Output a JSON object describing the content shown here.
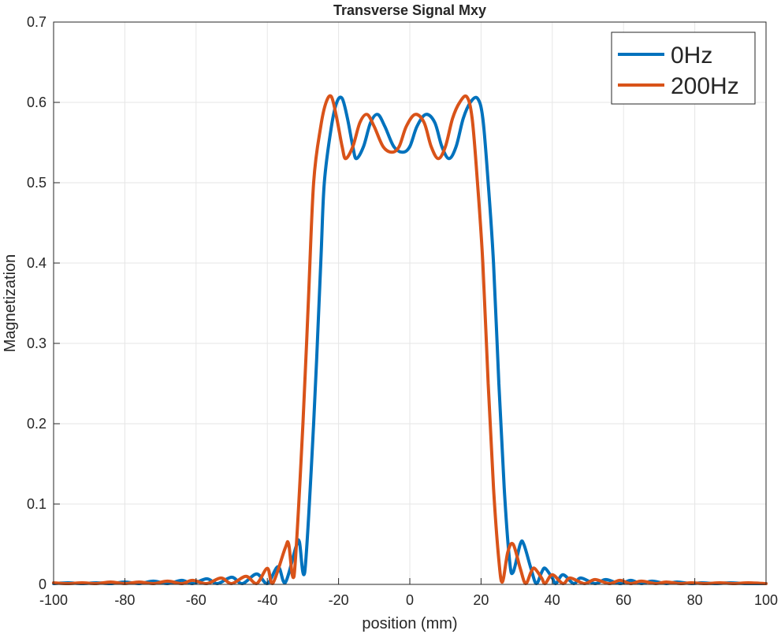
{
  "chart_data": {
    "type": "line",
    "title": "Transverse Signal Mxy",
    "xlabel": "position (mm)",
    "ylabel": "Magnetization",
    "xlim": [
      -100,
      100
    ],
    "ylim": [
      0,
      0.7
    ],
    "xticks": [
      "-100",
      "-80",
      "-60",
      "-40",
      "-20",
      "0",
      "20",
      "40",
      "60",
      "80",
      "100"
    ],
    "yticks": [
      "0",
      "0.1",
      "0.2",
      "0.3",
      "0.4",
      "0.5",
      "0.6",
      "0.7"
    ],
    "grid": true,
    "legend_position": "top-right",
    "series": [
      {
        "name": "0Hz",
        "color": "#0072BD",
        "points": [
          [
            -100,
            0.001
          ],
          [
            -96,
            0.002
          ],
          [
            -92,
            0.001
          ],
          [
            -88,
            0.002
          ],
          [
            -84,
            0.001
          ],
          [
            -80,
            0.003
          ],
          [
            -76,
            0.001
          ],
          [
            -72,
            0.004
          ],
          [
            -68,
            0.001
          ],
          [
            -64,
            0.005
          ],
          [
            -61,
            0.001
          ],
          [
            -57,
            0.007
          ],
          [
            -54,
            0.001
          ],
          [
            -50,
            0.009
          ],
          [
            -47,
            0.001
          ],
          [
            -43,
            0.013
          ],
          [
            -40,
            0.001
          ],
          [
            -37,
            0.022
          ],
          [
            -35,
            0.002
          ],
          [
            -32,
            0.046
          ],
          [
            -31,
            0.053
          ],
          [
            -29.5,
            0.015
          ],
          [
            -27,
            0.2
          ],
          [
            -25,
            0.4
          ],
          [
            -24,
            0.5
          ],
          [
            -22,
            0.57
          ],
          [
            -20.5,
            0.6
          ],
          [
            -19,
            0.605
          ],
          [
            -17.5,
            0.58
          ],
          [
            -16,
            0.545
          ],
          [
            -15,
            0.53
          ],
          [
            -13,
            0.545
          ],
          [
            -11,
            0.575
          ],
          [
            -9,
            0.585
          ],
          [
            -7,
            0.57
          ],
          [
            -4.5,
            0.545
          ],
          [
            -2,
            0.538
          ],
          [
            0,
            0.545
          ],
          [
            2,
            0.57
          ],
          [
            4.5,
            0.585
          ],
          [
            7,
            0.575
          ],
          [
            9,
            0.545
          ],
          [
            11,
            0.53
          ],
          [
            13,
            0.545
          ],
          [
            15,
            0.58
          ],
          [
            17,
            0.6
          ],
          [
            19,
            0.605
          ],
          [
            20.5,
            0.58
          ],
          [
            22,
            0.5
          ],
          [
            23.5,
            0.4
          ],
          [
            25,
            0.25
          ],
          [
            26.5,
            0.12
          ],
          [
            28,
            0.03
          ],
          [
            29,
            0.015
          ],
          [
            31,
            0.05
          ],
          [
            32,
            0.05
          ],
          [
            34,
            0.02
          ],
          [
            35.5,
            0.001
          ],
          [
            37,
            0.015
          ],
          [
            38,
            0.02
          ],
          [
            40,
            0.008
          ],
          [
            41,
            0.001
          ],
          [
            43,
            0.012
          ],
          [
            46,
            0.001
          ],
          [
            48,
            0.008
          ],
          [
            52,
            0.001
          ],
          [
            55,
            0.006
          ],
          [
            59,
            0.001
          ],
          [
            62,
            0.005
          ],
          [
            65,
            0.001
          ],
          [
            68,
            0.004
          ],
          [
            72,
            0.001
          ],
          [
            75,
            0.003
          ],
          [
            79,
            0.001
          ],
          [
            82,
            0.002
          ],
          [
            86,
            0.001
          ],
          [
            90,
            0.002
          ],
          [
            94,
            0.001
          ],
          [
            100,
            0.001
          ]
        ]
      },
      {
        "name": "200Hz",
        "color": "#D95319",
        "points": [
          [
            -100,
            0.002
          ],
          [
            -96,
            0.001
          ],
          [
            -92,
            0.002
          ],
          [
            -88,
            0.001
          ],
          [
            -84,
            0.003
          ],
          [
            -80,
            0.001
          ],
          [
            -76,
            0.003
          ],
          [
            -72,
            0.001
          ],
          [
            -68,
            0.004
          ],
          [
            -64,
            0.001
          ],
          [
            -61,
            0.005
          ],
          [
            -57,
            0.001
          ],
          [
            -53,
            0.008
          ],
          [
            -50,
            0.001
          ],
          [
            -46,
            0.01
          ],
          [
            -43,
            0.001
          ],
          [
            -40,
            0.02
          ],
          [
            -38.5,
            0.001
          ],
          [
            -35,
            0.045
          ],
          [
            -34,
            0.05
          ],
          [
            -32.5,
            0.01
          ],
          [
            -30,
            0.2
          ],
          [
            -28.5,
            0.35
          ],
          [
            -27,
            0.5
          ],
          [
            -25,
            0.57
          ],
          [
            -23.5,
            0.6
          ],
          [
            -22,
            0.607
          ],
          [
            -20.5,
            0.58
          ],
          [
            -19,
            0.545
          ],
          [
            -18,
            0.53
          ],
          [
            -16,
            0.545
          ],
          [
            -14,
            0.575
          ],
          [
            -12,
            0.585
          ],
          [
            -10,
            0.57
          ],
          [
            -7.5,
            0.545
          ],
          [
            -5,
            0.538
          ],
          [
            -3,
            0.545
          ],
          [
            -1,
            0.57
          ],
          [
            1.5,
            0.585
          ],
          [
            4,
            0.575
          ],
          [
            6,
            0.545
          ],
          [
            8,
            0.53
          ],
          [
            10,
            0.545
          ],
          [
            12,
            0.58
          ],
          [
            14,
            0.6
          ],
          [
            16,
            0.607
          ],
          [
            17.5,
            0.58
          ],
          [
            19,
            0.5
          ],
          [
            20.5,
            0.4
          ],
          [
            22,
            0.25
          ],
          [
            23.5,
            0.12
          ],
          [
            25,
            0.03
          ],
          [
            26,
            0.003
          ],
          [
            27.5,
            0.04
          ],
          [
            29,
            0.05
          ],
          [
            31,
            0.02
          ],
          [
            32.5,
            0.001
          ],
          [
            34,
            0.015
          ],
          [
            35,
            0.02
          ],
          [
            37,
            0.008
          ],
          [
            38,
            0.001
          ],
          [
            40,
            0.012
          ],
          [
            43,
            0.001
          ],
          [
            45,
            0.008
          ],
          [
            49,
            0.001
          ],
          [
            52,
            0.006
          ],
          [
            56,
            0.001
          ],
          [
            59,
            0.005
          ],
          [
            62,
            0.001
          ],
          [
            65,
            0.004
          ],
          [
            69,
            0.001
          ],
          [
            72,
            0.003
          ],
          [
            76,
            0.001
          ],
          [
            79,
            0.002
          ],
          [
            83,
            0.001
          ],
          [
            87,
            0.002
          ],
          [
            91,
            0.001
          ],
          [
            95,
            0.002
          ],
          [
            100,
            0.001
          ]
        ]
      }
    ]
  }
}
